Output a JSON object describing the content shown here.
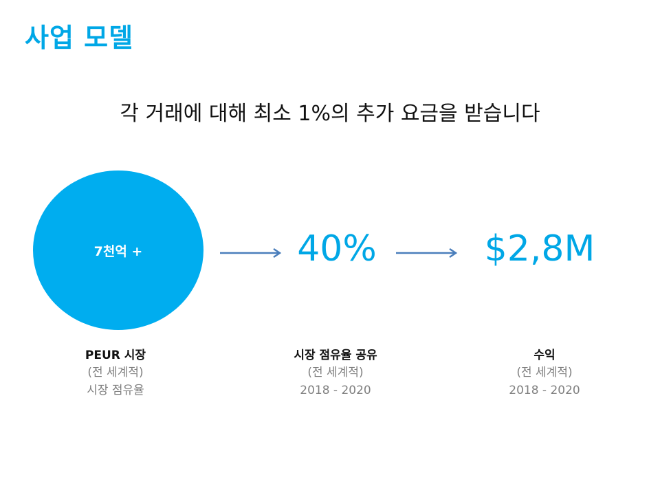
{
  "slide": {
    "title": "사업 모델",
    "subtitle": "각 거래에 대해 최소 1%의 추가 요금을 받습니다",
    "accent_color": "#00adef",
    "arrow_color": "#4a7ebb"
  },
  "circle": {
    "label": "7천억 +"
  },
  "values": {
    "share": "40%",
    "revenue": "$2,8M"
  },
  "columns": [
    {
      "heading": "PEUR 시장",
      "line1": "(전 세계적)",
      "line2": "시장 점유율"
    },
    {
      "heading": "시장 점유율 공유",
      "line1": "(전 세계적)",
      "line2": "2018 - 2020"
    },
    {
      "heading": "수익",
      "line1": "(전 세계적)",
      "line2": "2018 - 2020"
    }
  ]
}
